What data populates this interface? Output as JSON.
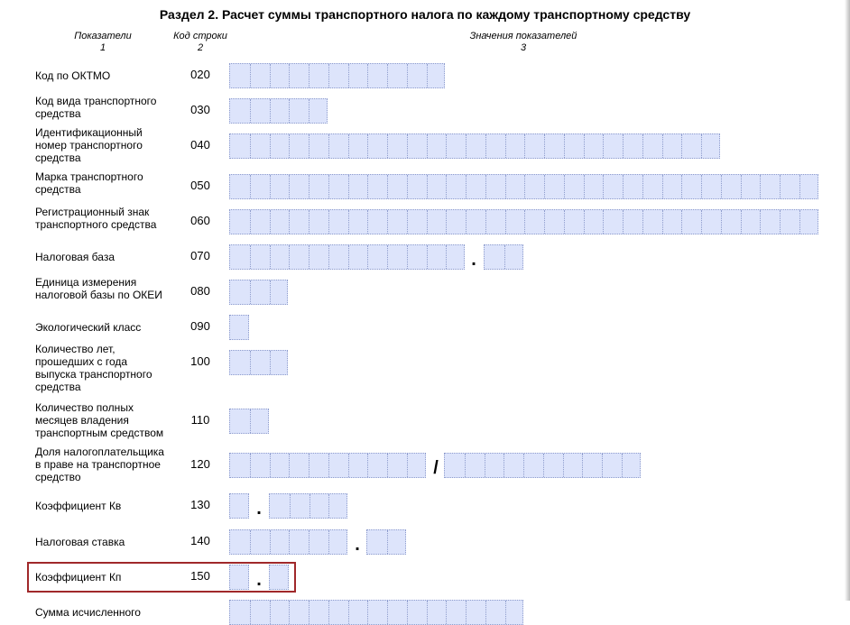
{
  "header": {
    "title": "Раздел 2. Расчет суммы транспортного налога по каждому транспортному средству"
  },
  "columns": [
    {
      "name": "Показатели",
      "number": "1"
    },
    {
      "name": "Код строки",
      "number": "2"
    },
    {
      "name": "Значения показателей",
      "number": "3"
    }
  ],
  "rows": [
    {
      "label": [
        "Код по ОКТМО"
      ],
      "code": "020"
    },
    {
      "label": [
        "Код вида транспортного",
        "средства"
      ],
      "code": "030"
    },
    {
      "label": [
        "Идентификационный",
        "номер транспортного",
        "средства"
      ],
      "code": "040"
    },
    {
      "label": [
        "Марка транспортного",
        "средства"
      ],
      "code": "050"
    },
    {
      "label": [
        "Регистрационный знак",
        "транспортного средства"
      ],
      "code": "060"
    },
    {
      "label": [
        "Налоговая база"
      ],
      "code": "070",
      "separator": "."
    },
    {
      "label": [
        "Единица измерения",
        "налоговой базы по ОКЕИ"
      ],
      "code": "080"
    },
    {
      "label": [
        "Экологический класс"
      ],
      "code": "090"
    },
    {
      "label": [
        "Количество лет,",
        "прошедших с года",
        "выпуска транспортного",
        "средства"
      ],
      "code": "100"
    },
    {
      "label": [
        "Количество полных",
        "месяцев владения",
        "транспортным средством"
      ],
      "code": "110"
    },
    {
      "label": [
        "Доля налогоплательщика",
        "в праве на транспортное",
        "средство"
      ],
      "code": "120",
      "separator": "/"
    },
    {
      "label": [
        "Коэффициент Кв"
      ],
      "code": "130",
      "separator": "."
    },
    {
      "label": [
        "Налоговая ставка"
      ],
      "code": "140",
      "separator": "."
    },
    {
      "label": [
        "Коэффициент Кп"
      ],
      "code": "150",
      "separator": "."
    },
    {
      "label": [
        "Сумма исчисленного"
      ]
    }
  ]
}
